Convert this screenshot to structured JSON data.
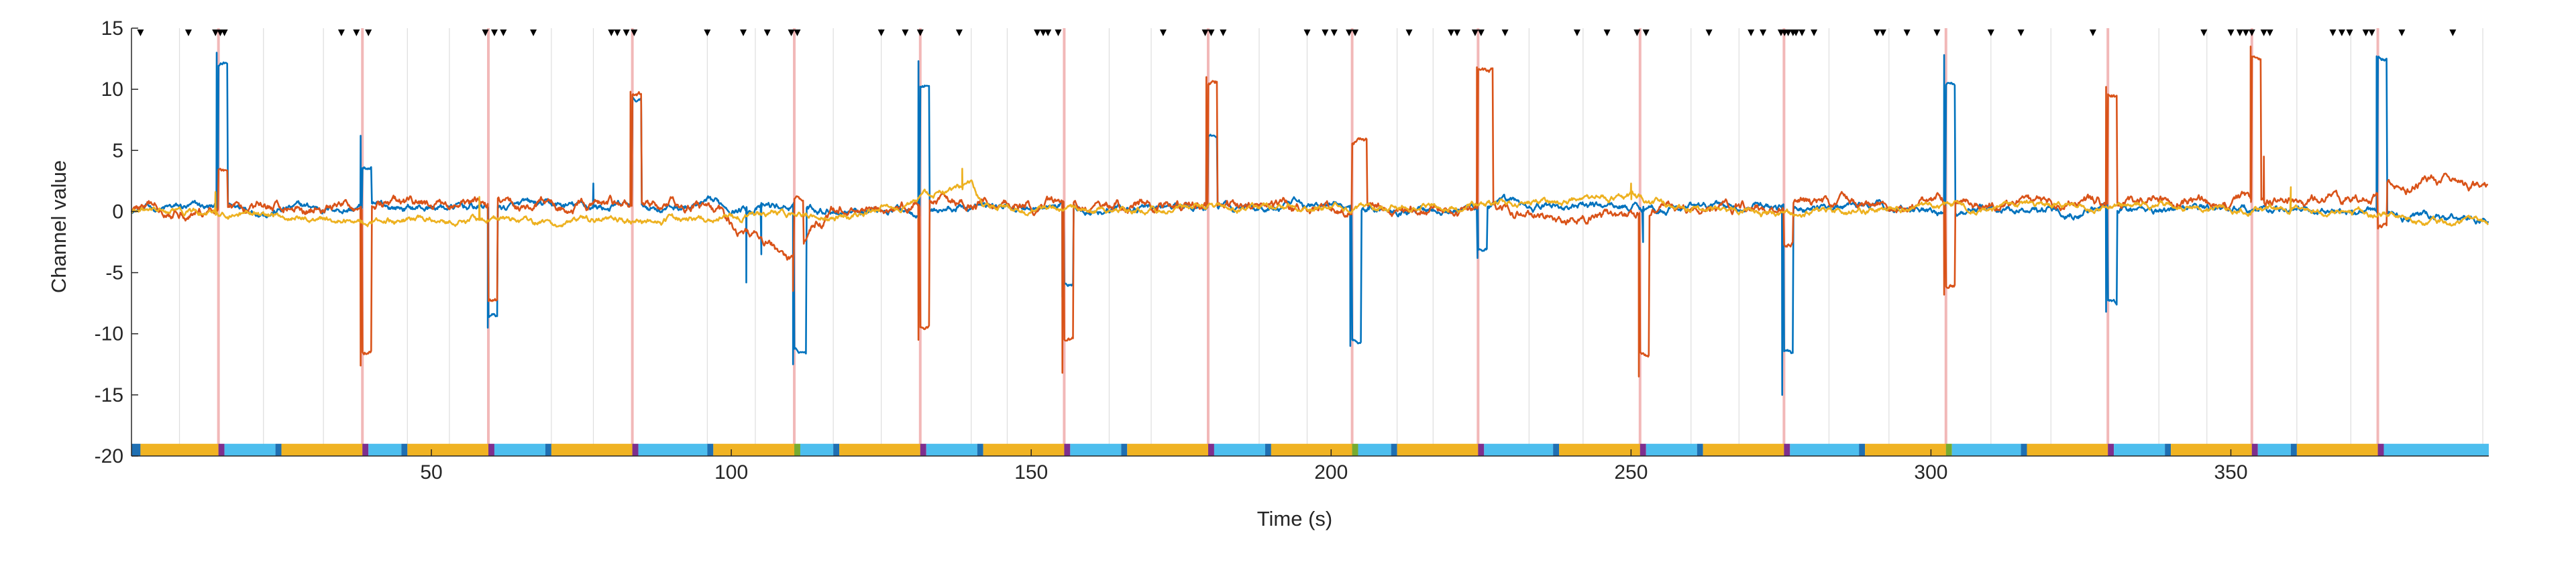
{
  "chart_data": {
    "type": "line",
    "xlabel": "Time (s)",
    "ylabel": "Channel value",
    "xlim": [
      0,
      393
    ],
    "ylim": [
      -20,
      15
    ],
    "xticks": [
      50,
      100,
      150,
      200,
      250,
      300,
      350
    ],
    "yticks": [
      15,
      10,
      5,
      0,
      -5,
      -10,
      -15,
      -20
    ],
    "grid": "x",
    "legend": "none",
    "colors": {
      "blue": "#0072BD",
      "orange": "#D95319",
      "yellow": "#EDB120",
      "event_line": "#F2B8B8",
      "grid": "#DDDDDD",
      "marker": "#000000"
    },
    "event_times": [
      14.5,
      38.5,
      59.5,
      83.5,
      110.5,
      131.5,
      155.5,
      179.5,
      203.5,
      224.5,
      251.5,
      275.5,
      302.5,
      329.5,
      353.5,
      374.5
    ],
    "vertical_grid_times": [
      8,
      22,
      32,
      46,
      53,
      70,
      77,
      96,
      104,
      117,
      125,
      140,
      146,
      163,
      170,
      188,
      196,
      211,
      217,
      233,
      242,
      260,
      268,
      283,
      293,
      310,
      320,
      338,
      346,
      361,
      370,
      392
    ],
    "marker_times": [
      1.5,
      9.5,
      14,
      14.8,
      15.5,
      35,
      37.5,
      39.5,
      59,
      60.5,
      62,
      67,
      80,
      81,
      82.5,
      83.8,
      96,
      102,
      106,
      110,
      111,
      125,
      129,
      131.5,
      138,
      151,
      152,
      152.8,
      154.5,
      172,
      179,
      180,
      182,
      196,
      199,
      200.5,
      203,
      204,
      213,
      220,
      221,
      224,
      225,
      229,
      241,
      246,
      251,
      252.5,
      263,
      270,
      272,
      275,
      275.6,
      276.2,
      277,
      277.5,
      278.5,
      280.5,
      291,
      292,
      296,
      301,
      310,
      315,
      327,
      345.5,
      350,
      351.5,
      352.5,
      353.5,
      355.5,
      356.5,
      367,
      368.5,
      369.8,
      372.5,
      373.5,
      378.5,
      387
    ],
    "series": [
      {
        "color": "blue",
        "baseline": [
          [
            0,
            0.2
          ],
          [
            40,
            0.3
          ],
          [
            90,
            0.4
          ],
          [
            130,
            0.3
          ],
          [
            180,
            0.3
          ],
          [
            200,
            0.4
          ],
          [
            250,
            0.4
          ],
          [
            300,
            0.3
          ],
          [
            340,
            0.2
          ],
          [
            370,
            0.2
          ],
          [
            380,
            -0.4
          ],
          [
            393,
            -0.6
          ]
        ],
        "pulses": [
          [
            14.5,
            16.0,
            12.0
          ],
          [
            38.5,
            40.0,
            3.5
          ],
          [
            59.5,
            61.0,
            -8.5
          ],
          [
            83.5,
            85.0,
            9.0
          ],
          [
            110.5,
            112.5,
            -11.5
          ],
          [
            131.5,
            133.0,
            10.5
          ],
          [
            155.5,
            157.0,
            -6.0
          ],
          [
            179.5,
            181.0,
            6.0
          ],
          [
            203.5,
            205.0,
            -10.5
          ],
          [
            224.5,
            226.0,
            -3.0
          ],
          [
            275.5,
            277.0,
            -11.5
          ],
          [
            302.5,
            304.0,
            10.5
          ],
          [
            329.5,
            331.0,
            -7.5
          ],
          [
            374.5,
            376.0,
            12.5
          ]
        ],
        "spikes": [
          [
            14.2,
            13.0
          ],
          [
            38.2,
            6.2
          ],
          [
            59.4,
            -9.5
          ],
          [
            77.0,
            2.3
          ],
          [
            102.5,
            -5.8
          ],
          [
            105.0,
            -3.5
          ],
          [
            110.3,
            -12.5
          ],
          [
            131.2,
            12.3
          ],
          [
            155.2,
            -7.0
          ],
          [
            179.2,
            5.0
          ],
          [
            203.2,
            -11.0
          ],
          [
            224.4,
            -3.8
          ],
          [
            252.0,
            -2.5
          ],
          [
            275.2,
            -15.0
          ],
          [
            302.2,
            12.8
          ],
          [
            329.2,
            -8.2
          ],
          [
            374.3,
            12.7
          ]
        ],
        "noise": 0.35
      },
      {
        "color": "orange",
        "baseline": [
          [
            0,
            0.3
          ],
          [
            40,
            0.4
          ],
          [
            95,
            0.5
          ],
          [
            100,
            -1.0
          ],
          [
            106,
            -2.5
          ],
          [
            110,
            -4.0
          ],
          [
            113,
            -1.5
          ],
          [
            118,
            0.3
          ],
          [
            150,
            0.6
          ],
          [
            200,
            0.3
          ],
          [
            230,
            0.2
          ],
          [
            250,
            -0.5
          ],
          [
            255,
            0.3
          ],
          [
            300,
            0.7
          ],
          [
            340,
            0.6
          ],
          [
            355,
            0.8
          ],
          [
            370,
            1.2
          ],
          [
            385,
            2.2
          ],
          [
            393,
            1.5
          ]
        ],
        "pulses": [
          [
            14.5,
            16.0,
            3.5
          ],
          [
            38.5,
            40.0,
            -11.5
          ],
          [
            59.5,
            61.0,
            -7.5
          ],
          [
            83.5,
            85.0,
            9.5
          ],
          [
            110.5,
            112.0,
            1.0
          ],
          [
            131.5,
            133.0,
            -9.5
          ],
          [
            155.5,
            157.0,
            -10.5
          ],
          [
            179.5,
            181.0,
            10.5
          ],
          [
            203.5,
            206.0,
            5.8
          ],
          [
            224.5,
            227.0,
            11.5
          ],
          [
            251.5,
            253.0,
            -11.5
          ],
          [
            275.5,
            277.0,
            -2.5
          ],
          [
            302.5,
            304.0,
            -6.0
          ],
          [
            329.5,
            331.0,
            9.5
          ],
          [
            353.5,
            355.0,
            12.5
          ],
          [
            374.5,
            376.0,
            -1.5
          ]
        ],
        "spikes": [
          [
            38.2,
            -12.6
          ],
          [
            83.2,
            9.8
          ],
          [
            110.3,
            -6.5
          ],
          [
            131.2,
            -10.5
          ],
          [
            155.2,
            -13.2
          ],
          [
            179.2,
            11.0
          ],
          [
            224.3,
            11.8
          ],
          [
            251.3,
            -13.5
          ],
          [
            302.2,
            -6.8
          ],
          [
            329.2,
            10.2
          ],
          [
            353.3,
            13.5
          ],
          [
            355.5,
            4.5
          ]
        ],
        "noise": 0.45
      },
      {
        "color": "yellow",
        "baseline": [
          [
            0,
            0.0
          ],
          [
            20,
            -0.4
          ],
          [
            40,
            -0.7
          ],
          [
            60,
            -0.5
          ],
          [
            70,
            -1.0
          ],
          [
            85,
            -0.8
          ],
          [
            100,
            -0.4
          ],
          [
            120,
            -0.4
          ],
          [
            140,
            2.0
          ],
          [
            142,
            0.3
          ],
          [
            160,
            0.2
          ],
          [
            200,
            0.3
          ],
          [
            230,
            0.7
          ],
          [
            250,
            1.0
          ],
          [
            270,
            -0.2
          ],
          [
            300,
            0.3
          ],
          [
            330,
            0.4
          ],
          [
            360,
            0.3
          ],
          [
            393,
            -1.0
          ]
        ],
        "pulses": [],
        "spikes": [
          [
            14.0,
            1.6
          ],
          [
            58.0,
            1.2
          ],
          [
            138.5,
            3.5
          ],
          [
            250.0,
            2.3
          ],
          [
            360.0,
            2.0
          ]
        ],
        "noise": 0.3
      }
    ],
    "state_bar": {
      "y_top": -19.0,
      "y_bottom": -20.0,
      "segments": [
        [
          0,
          1.5,
          "#1F6FB2"
        ],
        [
          1.5,
          14.5,
          "#F0B323"
        ],
        [
          14.5,
          15.5,
          "#7E2F8E"
        ],
        [
          15.5,
          24,
          "#4DBEEE"
        ],
        [
          24,
          25,
          "#1F6FB2"
        ],
        [
          25,
          38.5,
          "#F0B323"
        ],
        [
          38.5,
          39.5,
          "#7E2F8E"
        ],
        [
          39.5,
          45,
          "#4DBEEE"
        ],
        [
          45,
          46,
          "#1F6FB2"
        ],
        [
          46,
          59.5,
          "#F0B323"
        ],
        [
          59.5,
          60.5,
          "#7E2F8E"
        ],
        [
          60.5,
          69,
          "#4DBEEE"
        ],
        [
          69,
          70,
          "#1F6FB2"
        ],
        [
          70,
          83.5,
          "#F0B323"
        ],
        [
          83.5,
          84.5,
          "#7E2F8E"
        ],
        [
          84.5,
          96,
          "#4DBEEE"
        ],
        [
          96,
          97,
          "#1F6FB2"
        ],
        [
          97,
          110.5,
          "#F0B323"
        ],
        [
          110.5,
          111.5,
          "#77AC30"
        ],
        [
          111.5,
          117,
          "#4DBEEE"
        ],
        [
          117,
          118,
          "#1F6FB2"
        ],
        [
          118,
          131.5,
          "#F0B323"
        ],
        [
          131.5,
          132.5,
          "#7E2F8E"
        ],
        [
          132.5,
          141,
          "#4DBEEE"
        ],
        [
          141,
          142,
          "#1F6FB2"
        ],
        [
          142,
          155.5,
          "#F0B323"
        ],
        [
          155.5,
          156.5,
          "#7E2F8E"
        ],
        [
          156.5,
          165,
          "#4DBEEE"
        ],
        [
          165,
          166,
          "#1F6FB2"
        ],
        [
          166,
          179.5,
          "#F0B323"
        ],
        [
          179.5,
          180.5,
          "#7E2F8E"
        ],
        [
          180.5,
          189,
          "#4DBEEE"
        ],
        [
          189,
          190,
          "#1F6FB2"
        ],
        [
          190,
          203.5,
          "#F0B323"
        ],
        [
          203.5,
          204.5,
          "#77AC30"
        ],
        [
          204.5,
          210,
          "#4DBEEE"
        ],
        [
          210,
          211,
          "#1F6FB2"
        ],
        [
          211,
          224.5,
          "#F0B323"
        ],
        [
          224.5,
          225.5,
          "#7E2F8E"
        ],
        [
          225.5,
          237,
          "#4DBEEE"
        ],
        [
          237,
          238,
          "#1F6FB2"
        ],
        [
          238,
          251.5,
          "#F0B323"
        ],
        [
          251.5,
          252.5,
          "#7E2F8E"
        ],
        [
          252.5,
          261,
          "#4DBEEE"
        ],
        [
          261,
          262,
          "#1F6FB2"
        ],
        [
          262,
          275.5,
          "#F0B323"
        ],
        [
          275.5,
          276.5,
          "#7E2F8E"
        ],
        [
          276.5,
          288,
          "#4DBEEE"
        ],
        [
          288,
          289,
          "#1F6FB2"
        ],
        [
          289,
          302.5,
          "#F0B323"
        ],
        [
          302.5,
          303.5,
          "#77AC30"
        ],
        [
          303.5,
          315,
          "#4DBEEE"
        ],
        [
          315,
          316,
          "#1F6FB2"
        ],
        [
          316,
          329.5,
          "#F0B323"
        ],
        [
          329.5,
          330.5,
          "#7E2F8E"
        ],
        [
          330.5,
          339,
          "#4DBEEE"
        ],
        [
          339,
          340,
          "#1F6FB2"
        ],
        [
          340,
          353.5,
          "#F0B323"
        ],
        [
          353.5,
          354.5,
          "#7E2F8E"
        ],
        [
          354.5,
          360,
          "#4DBEEE"
        ],
        [
          360,
          361,
          "#1F6FB2"
        ],
        [
          361,
          374.5,
          "#F0B323"
        ],
        [
          374.5,
          375.5,
          "#7E2F8E"
        ],
        [
          375.5,
          393,
          "#4DBEEE"
        ]
      ]
    }
  }
}
